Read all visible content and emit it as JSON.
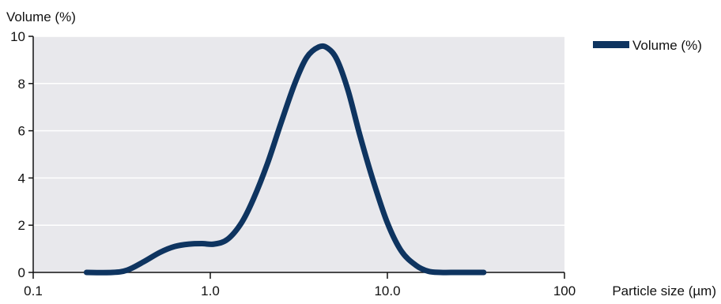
{
  "chart_data": {
    "type": "line",
    "ylabel": "Volume (%)",
    "xlabel": "Particle size (µm)",
    "x_scale": "log",
    "xlim": [
      0.1,
      100
    ],
    "ylim": [
      0,
      10
    ],
    "x_ticks": [
      {
        "value": 0.1,
        "label": "0.1"
      },
      {
        "value": 1,
        "label": "1.0"
      },
      {
        "value": 10,
        "label": "10.0"
      },
      {
        "value": 100,
        "label": "100"
      }
    ],
    "y_ticks": [
      {
        "value": 0,
        "label": "0"
      },
      {
        "value": 2,
        "label": "2"
      },
      {
        "value": 4,
        "label": "4"
      },
      {
        "value": 6,
        "label": "6"
      },
      {
        "value": 8,
        "label": "8"
      },
      {
        "value": 10,
        "label": "10"
      }
    ],
    "grid": "horizontal",
    "legend": {
      "position": "top-right",
      "entries": [
        "Volume (%)"
      ]
    },
    "series": [
      {
        "name": "Volume (%)",
        "color": "#0e3460",
        "x": [
          0.2,
          0.28,
          0.34,
          0.42,
          0.52,
          0.63,
          0.76,
          0.9,
          1.05,
          1.25,
          1.5,
          1.75,
          2.1,
          2.5,
          3.0,
          3.5,
          4.1,
          4.6,
          5.2,
          6.0,
          7.0,
          8.3,
          10.0,
          12.0,
          14.5,
          17.0,
          20.0,
          25.0,
          35.0
        ],
        "y": [
          0,
          0,
          0.1,
          0.45,
          0.85,
          1.1,
          1.2,
          1.22,
          1.2,
          1.4,
          2.1,
          3.1,
          4.6,
          6.3,
          8.0,
          9.1,
          9.55,
          9.5,
          9.0,
          7.7,
          5.8,
          3.9,
          2.1,
          0.9,
          0.3,
          0.05,
          0,
          0,
          0
        ]
      }
    ]
  }
}
